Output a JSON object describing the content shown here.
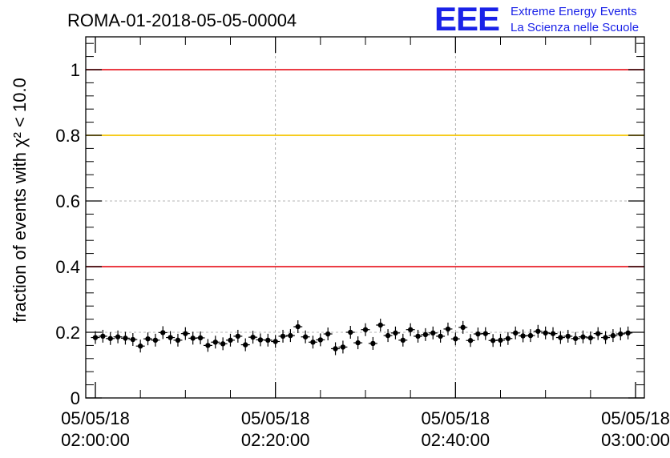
{
  "header": {
    "title": "ROMA-01-2018-05-05-00004",
    "logo_mark": "EEE",
    "logo_line1": "Extreme Energy Events",
    "logo_line2": "La Scienza nelle Scuole"
  },
  "chart_data": {
    "type": "scatter",
    "title": "ROMA-01-2018-05-05-00004",
    "ylabel": "fraction of events with χ² < 10.0",
    "xlabel": "",
    "ylim": [
      0,
      1.1
    ],
    "yticks": [
      "0",
      "0.2",
      "0.4",
      "0.6",
      "0.8",
      "1"
    ],
    "xticks": [
      {
        "date": "05/05/18",
        "time": "02:00:00"
      },
      {
        "date": "05/05/18",
        "time": "02:20:00"
      },
      {
        "date": "05/05/18",
        "time": "02:40:00"
      },
      {
        "date": "05/05/18",
        "time": "03:00:00"
      }
    ],
    "xlim": [
      "2018-05-05 02:00:00",
      "2018-05-05 03:00:00"
    ],
    "grid": true,
    "reference_lines": [
      {
        "y": 1.0,
        "color": "#e8202a"
      },
      {
        "y": 0.8,
        "color": "#f5c400"
      },
      {
        "y": 0.4,
        "color": "#e8202a"
      }
    ],
    "marker_color": "#000000",
    "series": [
      {
        "x": [
          "2018-05-05 02:00:00",
          "2018-05-05 02:00:50",
          "2018-05-05 02:01:40",
          "2018-05-05 02:02:30",
          "2018-05-05 02:03:20",
          "2018-05-05 02:04:10",
          "2018-05-05 02:05:00",
          "2018-05-05 02:05:50",
          "2018-05-05 02:06:40",
          "2018-05-05 02:07:30",
          "2018-05-05 02:08:20",
          "2018-05-05 02:09:10",
          "2018-05-05 02:10:00",
          "2018-05-05 02:10:50",
          "2018-05-05 02:11:40",
          "2018-05-05 02:12:30",
          "2018-05-05 02:13:20",
          "2018-05-05 02:14:10",
          "2018-05-05 02:15:00",
          "2018-05-05 02:15:50",
          "2018-05-05 02:16:40",
          "2018-05-05 02:17:30",
          "2018-05-05 02:18:20",
          "2018-05-05 02:19:10",
          "2018-05-05 02:20:00",
          "2018-05-05 02:20:50",
          "2018-05-05 02:21:40",
          "2018-05-05 02:22:30",
          "2018-05-05 02:23:20",
          "2018-05-05 02:24:10",
          "2018-05-05 02:25:00",
          "2018-05-05 02:25:50",
          "2018-05-05 02:26:40",
          "2018-05-05 02:27:30",
          "2018-05-05 02:28:20",
          "2018-05-05 02:29:10",
          "2018-05-05 02:30:00",
          "2018-05-05 02:30:50",
          "2018-05-05 02:31:40",
          "2018-05-05 02:32:30",
          "2018-05-05 02:33:20",
          "2018-05-05 02:34:10",
          "2018-05-05 02:35:00",
          "2018-05-05 02:35:50",
          "2018-05-05 02:36:40",
          "2018-05-05 02:37:30",
          "2018-05-05 02:38:20",
          "2018-05-05 02:39:10",
          "2018-05-05 02:40:00",
          "2018-05-05 02:40:50",
          "2018-05-05 02:41:40",
          "2018-05-05 02:42:30",
          "2018-05-05 02:43:20",
          "2018-05-05 02:44:10",
          "2018-05-05 02:45:00",
          "2018-05-05 02:45:50",
          "2018-05-05 02:46:40",
          "2018-05-05 02:47:30",
          "2018-05-05 02:48:20",
          "2018-05-05 02:49:10",
          "2018-05-05 02:50:00",
          "2018-05-05 02:50:50",
          "2018-05-05 02:51:40",
          "2018-05-05 02:52:30",
          "2018-05-05 02:53:20",
          "2018-05-05 02:54:10",
          "2018-05-05 02:55:00",
          "2018-05-05 02:55:50",
          "2018-05-05 02:56:40",
          "2018-05-05 02:57:30",
          "2018-05-05 02:58:20",
          "2018-05-05 02:59:10"
        ],
        "y": [
          0.184,
          0.188,
          0.181,
          0.186,
          0.182,
          0.178,
          0.158,
          0.18,
          0.176,
          0.199,
          0.184,
          0.176,
          0.196,
          0.182,
          0.183,
          0.16,
          0.17,
          0.165,
          0.176,
          0.188,
          0.162,
          0.185,
          0.177,
          0.176,
          0.172,
          0.188,
          0.19,
          0.217,
          0.186,
          0.17,
          0.177,
          0.195,
          0.15,
          0.155,
          0.2,
          0.168,
          0.208,
          0.166,
          0.222,
          0.19,
          0.198,
          0.176,
          0.208,
          0.188,
          0.193,
          0.198,
          0.188,
          0.21,
          0.18,
          0.215,
          0.175,
          0.195,
          0.196,
          0.175,
          0.176,
          0.181,
          0.198,
          0.189,
          0.19,
          0.203,
          0.198,
          0.196,
          0.184,
          0.188,
          0.181,
          0.186,
          0.183,
          0.196,
          0.184,
          0.19,
          0.195,
          0.198
        ]
      }
    ]
  }
}
